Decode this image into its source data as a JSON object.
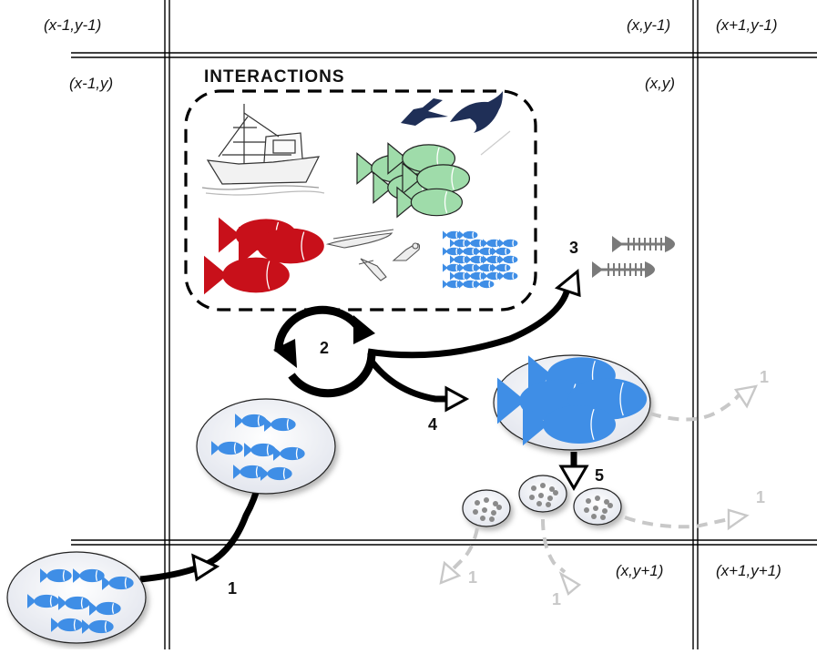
{
  "cells": {
    "top_left": "(x-1,y-1)",
    "top_center": "(x,y-1)",
    "top_right": "(x+1,y-1)",
    "mid_left": "(x-1,y)",
    "mid_center": "(x,y)",
    "bottom_center": "(x,y+1)",
    "bottom_right": "(x+1,y+1)"
  },
  "interactions_box": {
    "title": "INTERACTIONS"
  },
  "steps": {
    "s1": "1",
    "s2": "2",
    "s3": "3",
    "s4": "4",
    "s5": "5",
    "faded_right": "1",
    "faded_far_right": "1",
    "faded_bottom_left": "1",
    "faded_bottom_mid": "1"
  },
  "colors": {
    "fish_blue": "#3f8ee6",
    "fish_green": "#9fdcaa",
    "fish_red": "#c8101a",
    "skeleton_gray": "#7a7a7a",
    "faded_gray": "#c8c8c8",
    "ellipse_fill": "#eef0f5"
  }
}
